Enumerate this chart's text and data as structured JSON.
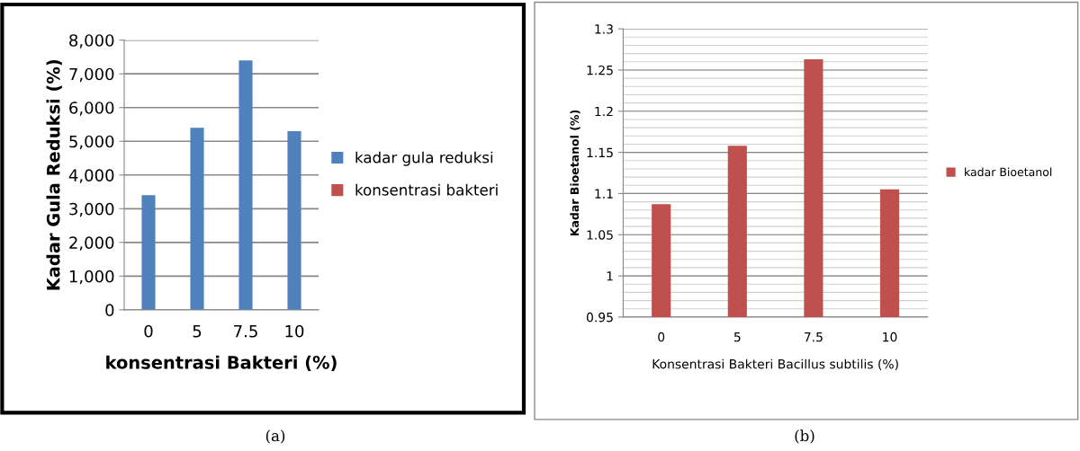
{
  "chart_data": [
    {
      "type": "bar",
      "categories": [
        "0",
        "5",
        "7.5",
        "10"
      ],
      "xlabel": "konsentrasi Bakteri (%)",
      "ylabel": "Kadar Gula Reduksi (%)",
      "series": [
        {
          "name": "kadar gula reduksi",
          "color": "#4f81bd",
          "values": [
            3400,
            5400,
            7400,
            5300
          ]
        },
        {
          "name": "konsentrasi bakteri",
          "color": "#c0504d",
          "values": [
            null,
            null,
            null,
            null
          ]
        }
      ],
      "ylim": [
        0,
        8000
      ],
      "yticks": [
        0,
        {
          "value": 1000,
          "label": "1,000"
        },
        {
          "value": 2000,
          "label": "2,000"
        },
        {
          "value": 3000,
          "label": "3,000"
        },
        {
          "value": 4000,
          "label": "4,000"
        },
        {
          "value": 5000,
          "label": "5,000"
        },
        {
          "value": 6000,
          "label": "6,000"
        },
        {
          "value": 7000,
          "label": "7,000"
        },
        {
          "value": 8000,
          "label": "8,000"
        }
      ],
      "grid": "y",
      "legend": "right",
      "annotations": [
        "(a)"
      ]
    },
    {
      "type": "bar",
      "categories": [
        "0",
        "5",
        "7.5",
        "10"
      ],
      "xlabel": "Konsentrasi Bakteri Bacillus subtilis (%)",
      "ylabel": "Kadar Bioetanol (%)",
      "series": [
        {
          "name": "kadar Bioetanol",
          "color": "#c0504d",
          "values": [
            1.087,
            1.158,
            1.263,
            1.105
          ]
        }
      ],
      "ylim": [
        0.95,
        1.3
      ],
      "yticks": [
        0.95,
        1,
        1.05,
        1.1,
        1.15,
        1.2,
        1.25,
        1.3
      ],
      "grid": "y",
      "legend": "right",
      "annotations": [
        "(b)"
      ]
    }
  ]
}
